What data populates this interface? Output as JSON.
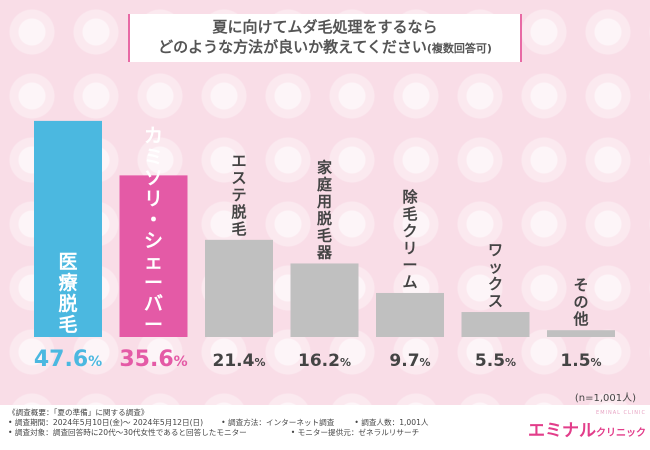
{
  "title": {
    "line1": "夏に向けてムダ毛処理をするなら",
    "line2": "どのような方法が良いか教えてください",
    "line2_note": "(複数回答可)"
  },
  "colors": {
    "highlight1": "#4bb8e0",
    "highlight2": "#e45aa6",
    "other": "#c0c0c0",
    "pink_text": "#e45aa6",
    "blue_text": "#4bb8e0",
    "gray_text": "#444444"
  },
  "chart_data": {
    "type": "bar",
    "categories": [
      "医療脱毛",
      "カミソリ・シェーバー",
      "エステ脱毛",
      "家庭用脱毛器",
      "除毛クリーム",
      "ワックス",
      "その他"
    ],
    "values": [
      47.6,
      35.6,
      21.4,
      16.2,
      9.7,
      5.5,
      1.5
    ],
    "value_labels": [
      "47.6%",
      "35.6%",
      "21.4%",
      "16.2%",
      "9.7%",
      "5.5%",
      "1.5%"
    ],
    "unit": "%",
    "ylim": [
      0,
      50
    ],
    "grid": false
  },
  "sample_note": "(n=1,001人)",
  "footer": {
    "survey_summary": "《調査概要：「夏の準備」に関する調査》",
    "period": "• 調査期間：2024年5月10日(金)～ 2024年5月12日(日)",
    "method": "• 調査方法：インターネット調査",
    "count": "• 調査人数：1,001人",
    "target": "• 調査対象：調査回答時に20代～30代女性であると回答したモニター",
    "provider": "• モニター提供元：ゼネラルリサーチ"
  },
  "logo": {
    "main": "エミナル",
    "suffix": "クリニック",
    "sub": "EMINAL CLINIC"
  }
}
